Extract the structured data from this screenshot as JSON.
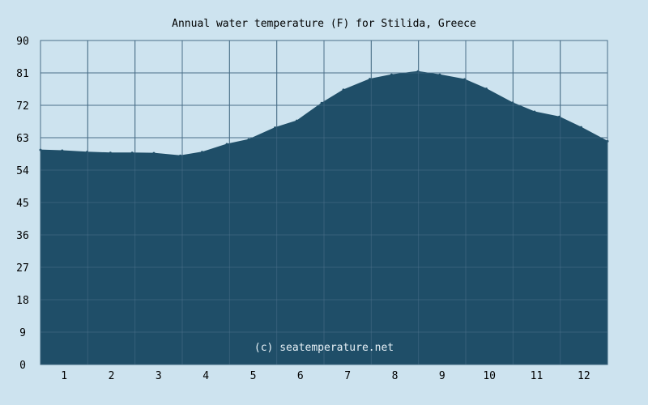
{
  "chart_data": {
    "type": "area",
    "title": "Annual water temperature (F) for Stilida, Greece",
    "watermark": "(c) seatemperature.net",
    "xlabel": "",
    "ylabel": "",
    "ylim": [
      0,
      90
    ],
    "y_ticks": [
      "0",
      "9",
      "18",
      "27",
      "36",
      "45",
      "54",
      "63",
      "72",
      "81",
      "90"
    ],
    "x_tick_labels": [
      "1",
      "2",
      "3",
      "4",
      "5",
      "6",
      "7",
      "8",
      "9",
      "10",
      "11",
      "12"
    ],
    "xlim": [
      1,
      366
    ],
    "grid": true,
    "colors": {
      "background": "#cde3ef",
      "area": "#1f4e68",
      "grid": "#4b6f88"
    },
    "series": [
      {
        "x": [
          1,
          15,
          31,
          46,
          60,
          74,
          91,
          105,
          121,
          135,
          152,
          166,
          182,
          196,
          213,
          227,
          244,
          258,
          274,
          288,
          305,
          319,
          335,
          349,
          366
        ],
        "values": [
          59.6,
          59.4,
          59.0,
          58.8,
          58.8,
          58.7,
          58.0,
          59.0,
          61.2,
          62.5,
          65.8,
          67.7,
          72.6,
          76.3,
          79.3,
          80.5,
          81.4,
          80.5,
          79.2,
          76.6,
          72.7,
          70.2,
          68.8,
          65.9,
          62.0
        ]
      }
    ]
  }
}
